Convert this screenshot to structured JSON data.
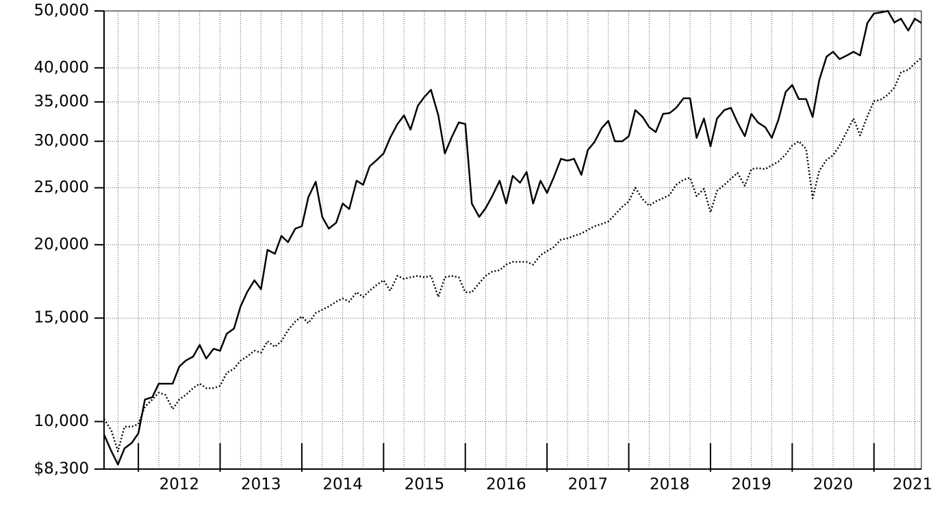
{
  "chart_data": {
    "type": "line",
    "log_scale": true,
    "grid": true,
    "x": [
      2011.58,
      2011.67,
      2011.75,
      2011.83,
      2011.92,
      2012,
      2012.08,
      2012.17,
      2012.25,
      2012.33,
      2012.42,
      2012.5,
      2012.58,
      2012.67,
      2012.75,
      2012.83,
      2012.92,
      2013,
      2013.08,
      2013.17,
      2013.25,
      2013.33,
      2013.42,
      2013.5,
      2013.58,
      2013.67,
      2013.75,
      2013.83,
      2013.92,
      2014,
      2014.08,
      2014.17,
      2014.25,
      2014.33,
      2014.42,
      2014.5,
      2014.58,
      2014.67,
      2014.75,
      2014.83,
      2014.92,
      2015,
      2015.08,
      2015.17,
      2015.25,
      2015.33,
      2015.42,
      2015.5,
      2015.58,
      2015.67,
      2015.75,
      2015.83,
      2015.92,
      2016,
      2016.08,
      2016.17,
      2016.25,
      2016.33,
      2016.42,
      2016.5,
      2016.58,
      2016.67,
      2016.75,
      2016.83,
      2016.92,
      2017,
      2017.08,
      2017.17,
      2017.25,
      2017.33,
      2017.42,
      2017.5,
      2017.58,
      2017.67,
      2017.75,
      2017.83,
      2017.92,
      2018,
      2018.08,
      2018.17,
      2018.25,
      2018.33,
      2018.42,
      2018.5,
      2018.58,
      2018.67,
      2018.75,
      2018.83,
      2018.92,
      2019,
      2019.08,
      2019.17,
      2019.25,
      2019.33,
      2019.42,
      2019.5,
      2019.58,
      2019.67,
      2019.75,
      2019.83,
      2019.92,
      2020,
      2020.08,
      2020.17,
      2020.25,
      2020.33,
      2020.42,
      2020.5,
      2020.58,
      2020.67,
      2020.75,
      2020.83,
      2020.92,
      2021,
      2021.08,
      2021.17,
      2021.25,
      2021.33,
      2021.42,
      2021.5,
      2021.58
    ],
    "xlim": [
      2011.58,
      2021.58
    ],
    "xticks": [
      2012,
      2013,
      2014,
      2015,
      2016,
      2017,
      2018,
      2019,
      2020,
      2021
    ],
    "ylim": [
      8300,
      50000
    ],
    "yticks": [
      {
        "value": 8300,
        "label": "$8,300"
      },
      {
        "value": 10000,
        "label": "10,000"
      },
      {
        "value": 15000,
        "label": "15,000"
      },
      {
        "value": 20000,
        "label": "20,000"
      },
      {
        "value": 25000,
        "label": "25,000"
      },
      {
        "value": 30000,
        "label": "30,000"
      },
      {
        "value": 35000,
        "label": "35,000"
      },
      {
        "value": 40000,
        "label": "40,000"
      },
      {
        "value": 50000,
        "label": "50,000"
      }
    ],
    "series": [
      {
        "color": "#000000",
        "line_style": "solid",
        "values": [
          9500,
          8900,
          8450,
          9000,
          9200,
          9550,
          10900,
          11000,
          11600,
          11600,
          11600,
          12400,
          12700,
          12900,
          13500,
          12800,
          13300,
          13200,
          14100,
          14400,
          15700,
          16600,
          17400,
          16800,
          19600,
          19300,
          20700,
          20200,
          21300,
          21500,
          24100,
          25600,
          22300,
          21300,
          21800,
          23500,
          23000,
          25700,
          25300,
          27200,
          27900,
          28600,
          30400,
          32100,
          33200,
          31400,
          34500,
          35700,
          36700,
          33200,
          28600,
          30400,
          32300,
          32100,
          23500,
          22300,
          23100,
          24200,
          25700,
          23500,
          26200,
          25500,
          26600,
          23500,
          25700,
          24500,
          26000,
          28000,
          27800,
          28000,
          26300,
          29000,
          29900,
          31600,
          32500,
          30000,
          30000,
          30600,
          33900,
          33000,
          31700,
          31100,
          33400,
          33500,
          34200,
          35500,
          35500,
          30400,
          32800,
          29400,
          32800,
          33900,
          34200,
          32300,
          30600,
          33400,
          32300,
          31700,
          30400,
          32600,
          36400,
          37400,
          35400,
          35400,
          33000,
          38100,
          41800,
          42600,
          41400,
          42000,
          42600,
          42000,
          47700,
          49500,
          49700,
          50000,
          47800,
          48500,
          46300,
          48500,
          47700
        ]
      },
      {
        "color": "#000000",
        "line_style": "dotted",
        "values": [
          10100,
          9650,
          8900,
          9800,
          9800,
          9900,
          10600,
          10900,
          11200,
          11100,
          10500,
          10900,
          11100,
          11400,
          11600,
          11400,
          11400,
          11500,
          12100,
          12300,
          12700,
          12900,
          13200,
          13100,
          13700,
          13400,
          13700,
          14300,
          14800,
          15100,
          14700,
          15300,
          15500,
          15700,
          16000,
          16200,
          16000,
          16600,
          16300,
          16700,
          17100,
          17400,
          16700,
          17700,
          17500,
          17600,
          17700,
          17600,
          17700,
          16300,
          17600,
          17700,
          17600,
          16600,
          16600,
          17200,
          17700,
          18000,
          18100,
          18500,
          18700,
          18700,
          18700,
          18500,
          19200,
          19500,
          19800,
          20400,
          20500,
          20700,
          20900,
          21200,
          21500,
          21700,
          21900,
          22500,
          23200,
          23700,
          25000,
          23900,
          23300,
          23700,
          24000,
          24300,
          25300,
          25800,
          26000,
          24200,
          24900,
          22700,
          24700,
          25300,
          25900,
          26500,
          25200,
          26900,
          27000,
          26900,
          27300,
          27700,
          28500,
          29500,
          30000,
          29100,
          24000,
          26700,
          27900,
          28400,
          29500,
          31200,
          32800,
          30700,
          33100,
          35100,
          35300,
          36000,
          37000,
          39300,
          39700,
          40700,
          41600
        ]
      }
    ]
  }
}
